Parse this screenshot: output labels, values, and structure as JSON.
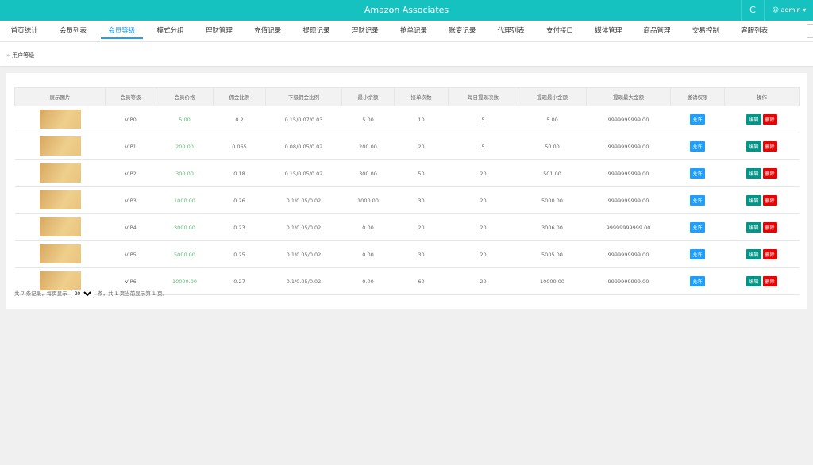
{
  "header": {
    "title": "Amazon Associates",
    "refresh": "C",
    "user": "admin"
  },
  "nav": {
    "tabs": [
      "首页统计",
      "会员列表",
      "会员等级",
      "模式分组",
      "理财管理",
      "充值记录",
      "提现记录",
      "理财记录",
      "抢单记录",
      "账变记录",
      "代理列表",
      "支付接口",
      "媒体管理",
      "商品管理",
      "交易控制",
      "客服列表"
    ],
    "active_tab": 2
  },
  "breadcrumb": {
    "separator": "»",
    "current": "用户等级"
  },
  "table": {
    "columns": [
      "展示图片",
      "会员等级",
      "会员价格",
      "佣金比例",
      "下级佣金比例",
      "最小余额",
      "接单次数",
      "每日提现次数",
      "提现最小金额",
      "提现最大金额",
      "邀请权限",
      "操作"
    ],
    "rows": [
      [
        "VIP0",
        "5.00",
        "0.2",
        "0.15/0.07/0.03",
        "5.00",
        "10",
        "5",
        "5.00",
        "9999999999.00"
      ],
      [
        "VIP1",
        "200.00",
        "0.065",
        "0.08/0.05/0.02",
        "200.00",
        "20",
        "5",
        "50.00",
        "9999999999.00"
      ],
      [
        "VIP2",
        "300.00",
        "0.18",
        "0.15/0.05/0.02",
        "300.00",
        "50",
        "20",
        "501.00",
        "9999999999.00"
      ],
      [
        "VIP3",
        "1000.00",
        "0.26",
        "0.1/0.05/0.02",
        "1000.00",
        "30",
        "20",
        "5000.00",
        "9999999999.00"
      ],
      [
        "VIP4",
        "3000.00",
        "0.23",
        "0.1/0.05/0.02",
        "0.00",
        "20",
        "20",
        "3006.00",
        "99999999999.00"
      ],
      [
        "VIP5",
        "5000.00",
        "0.25",
        "0.1/0.05/0.02",
        "0.00",
        "30",
        "20",
        "5005.00",
        "9999999999.00"
      ],
      [
        "VIP6",
        "10000.00",
        "0.27",
        "0.1/0.05/0.02",
        "0.00",
        "60",
        "20",
        "10000.00",
        "9999999999.00"
      ]
    ],
    "invite": "允许",
    "buttons": [
      "编辑",
      "删除"
    ]
  },
  "footer": {
    "before": "共 7 条记录，每页显示",
    "page_size": "20",
    "after": "条，共 1 页当前显示第 1 页。"
  }
}
